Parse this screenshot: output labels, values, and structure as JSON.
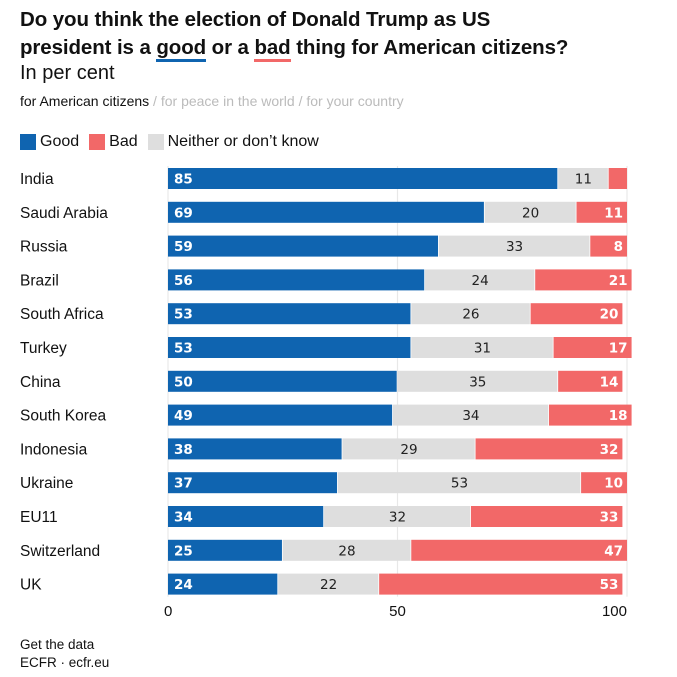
{
  "header": {
    "title_parts": {
      "line1": "Do you think the election of Donald Trump as US",
      "pre": "president is a ",
      "good": "good",
      "mid": " or a ",
      "bad": "bad",
      "post": " thing for American citizens?"
    },
    "subtitle": "In per cent"
  },
  "tabs": {
    "active": "for American citizens",
    "separator": " / ",
    "items": [
      "for peace in the world",
      "for your country"
    ]
  },
  "legend": [
    {
      "label": "Good",
      "color": "#0f64b0"
    },
    {
      "label": "Bad",
      "color": "#f26868"
    },
    {
      "label": "Neither or don’t know",
      "color": "#dedede"
    }
  ],
  "footer": {
    "link": "Get the data",
    "source": "ECFR · ecfr.eu"
  },
  "chart_data": {
    "type": "bar",
    "orientation": "horizontal",
    "stacked": true,
    "title": "Do you think the election of Donald Trump as US president is a good or a bad thing for American citizens?",
    "subtitle": "In per cent",
    "xlabel": "",
    "ylabel": "",
    "xlim": [
      0,
      100
    ],
    "xticks": [
      0,
      50,
      100
    ],
    "grid": true,
    "legend_position": "top-left",
    "categories": [
      "India",
      "Saudi Arabia",
      "Russia",
      "Brazil",
      "South Africa",
      "Turkey",
      "China",
      "South Korea",
      "Indonesia",
      "Ukraine",
      "EU11",
      "Switzerland",
      "UK"
    ],
    "series": [
      {
        "name": "Good",
        "color": "#0f64b0",
        "label_color": "#ffffff",
        "values": [
          85,
          69,
          59,
          56,
          53,
          53,
          50,
          49,
          38,
          37,
          34,
          25,
          24
        ]
      },
      {
        "name": "Neither or don’t know",
        "color": "#dedede",
        "label_color": "#222222",
        "values": [
          11,
          20,
          33,
          24,
          26,
          31,
          35,
          34,
          29,
          53,
          32,
          28,
          22
        ]
      },
      {
        "name": "Bad",
        "color": "#f26868",
        "label_color": "#ffffff",
        "values": [
          4,
          11,
          8,
          21,
          20,
          17,
          14,
          18,
          32,
          10,
          33,
          47,
          53
        ],
        "labels_shown": [
          false,
          true,
          true,
          true,
          true,
          true,
          true,
          true,
          true,
          true,
          true,
          true,
          true
        ]
      }
    ]
  }
}
